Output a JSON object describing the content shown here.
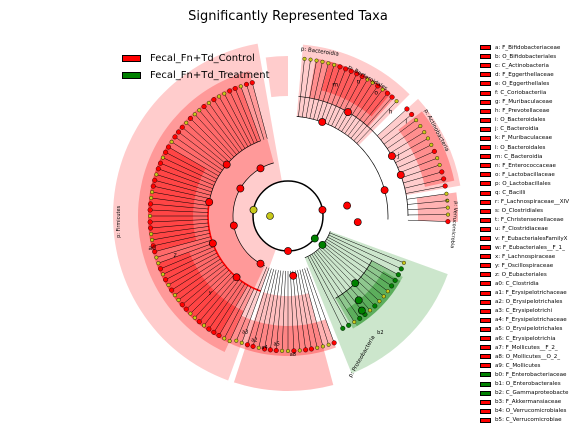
{
  "title": "Significantly Represented Taxa",
  "colors": {
    "control": "#ff0000",
    "treatment": "#008000",
    "node_neutral": "#c8c81a"
  },
  "legend": [
    {
      "label": "Fecal_Fn+Td_Control",
      "color": "#ff0000"
    },
    {
      "label": "Fecal_Fn+Td_Treatment",
      "color": "#008000"
    }
  ],
  "clade_labels": {
    "bacteroidia": "p: Bacteroidia",
    "bacteroidales": "p: Bacteroidales",
    "actinobacteria": "p: Actinobacteria",
    "verrucomicrobia": "p: Verrucomicrobia",
    "firmicutes": "p: Firmicutes",
    "proteobacteria": "p: Proteobacteria"
  },
  "letters": {
    "m": "m",
    "n": "n",
    "o": "o",
    "h": "h",
    "l": "l",
    "j": "j",
    "z": "z",
    "a0": "a0",
    "a2": "a2",
    "a3": "a3",
    "a4": "a4",
    "a5": "a5",
    "a8": "a8",
    "c": "c",
    "y": "y",
    "b2": "b2"
  },
  "keys": [
    {
      "label": "a: F_Bifidobacteriaceae",
      "group": "control"
    },
    {
      "label": "b: O_Bifidobacteriales",
      "group": "control"
    },
    {
      "label": "c: C_Actinobacteria",
      "group": "control"
    },
    {
      "label": "d: F_Eggerthellaceae",
      "group": "control"
    },
    {
      "label": "e: O_Eggerthellales",
      "group": "control"
    },
    {
      "label": "f: C_Coriobacteriia",
      "group": "control"
    },
    {
      "label": "g: F_Muribaculaceae",
      "group": "control"
    },
    {
      "label": "h: F_Prevotellaceae",
      "group": "control"
    },
    {
      "label": "i: O_Bacteroidales",
      "group": "control"
    },
    {
      "label": "j: C_Bacteroidia",
      "group": "control"
    },
    {
      "label": "k: F_Muribaculaceae",
      "group": "control"
    },
    {
      "label": "l: O_Bacteroidales",
      "group": "control"
    },
    {
      "label": "m: C_Bacteroidia",
      "group": "control"
    },
    {
      "label": "n: F_Enterococcaceae",
      "group": "control"
    },
    {
      "label": "o: F_Lactobacillaceae",
      "group": "control"
    },
    {
      "label": "p: O_Lactobacillales",
      "group": "control"
    },
    {
      "label": "q: C_Bacilli",
      "group": "control"
    },
    {
      "label": "r: F_Lachnospiraceae__XIV",
      "group": "control"
    },
    {
      "label": "s: O_Clostridiales",
      "group": "control"
    },
    {
      "label": "t: F_Christensenellaceae",
      "group": "control"
    },
    {
      "label": "u: F_Clostridiaceae",
      "group": "control"
    },
    {
      "label": "v: F_EubacterialesFamilyX",
      "group": "control"
    },
    {
      "label": "w: F_Eubacteriales__F_1_",
      "group": "control"
    },
    {
      "label": "x: F_Lachnospiraceae",
      "group": "control"
    },
    {
      "label": "y: F_Oscillospiraceae",
      "group": "control"
    },
    {
      "label": "z: O_Eubacteriales",
      "group": "control"
    },
    {
      "label": "a0: C_Clostridia",
      "group": "control"
    },
    {
      "label": "a1: F_Erysipelotrichaceae",
      "group": "control"
    },
    {
      "label": "a2: O_Erysipelotrichales",
      "group": "control"
    },
    {
      "label": "a3: C_Erysipelotrichi",
      "group": "control"
    },
    {
      "label": "a4: F_Erysipelotrichaceae",
      "group": "control"
    },
    {
      "label": "a5: O_Erysipelotrichales",
      "group": "control"
    },
    {
      "label": "a6: C_Erysipelotrichia",
      "group": "control"
    },
    {
      "label": "a7: F_Mollicutes__F_2_",
      "group": "control"
    },
    {
      "label": "a8: O_Mollicutes__O_2_",
      "group": "control"
    },
    {
      "label": "a9: C_Mollicutes",
      "group": "control"
    },
    {
      "label": "b0: F_Enterobacteriaceae",
      "group": "treatment"
    },
    {
      "label": "b1: O_Enterobacterales",
      "group": "treatment"
    },
    {
      "label": "b2: C_Gammaproteobacte",
      "group": "treatment"
    },
    {
      "label": "b3: F_Akkermansiaceae",
      "group": "control"
    },
    {
      "label": "b4: O_Verrucomicrobiales",
      "group": "control"
    },
    {
      "label": "b5: C_Verrucomicrobiae",
      "group": "control"
    }
  ]
}
